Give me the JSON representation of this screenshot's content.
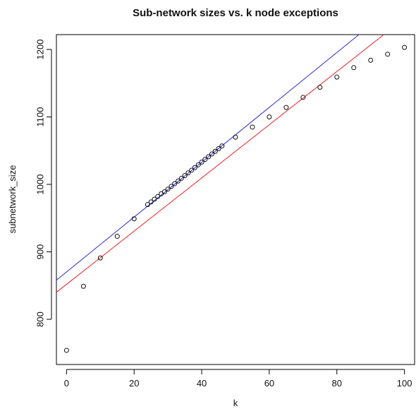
{
  "chart_data": {
    "type": "scatter",
    "title": "Sub-network sizes vs. k node exceptions",
    "xlabel": "k",
    "ylabel": "subnetwork_size",
    "xlim": [
      -3,
      103
    ],
    "ylim": [
      733,
      1222
    ],
    "x_ticks": [
      0,
      20,
      40,
      60,
      80,
      100
    ],
    "y_ticks": [
      800,
      900,
      1000,
      1100,
      1200
    ],
    "grid": false,
    "points": {
      "x": [
        0,
        5,
        10,
        15,
        20,
        24,
        25,
        26,
        27,
        28,
        29,
        30,
        31,
        32,
        33,
        34,
        35,
        36,
        37,
        38,
        39,
        40,
        41,
        42,
        43,
        44,
        45,
        46,
        50,
        55,
        60,
        65,
        70,
        75,
        80,
        85,
        90,
        95,
        100
      ],
      "y": [
        754,
        849,
        891,
        923,
        949,
        970,
        974,
        978,
        982,
        986,
        989,
        993,
        997,
        1001,
        1005,
        1009,
        1013,
        1017,
        1021,
        1025,
        1029,
        1033,
        1037,
        1041,
        1045,
        1049,
        1053,
        1057,
        1070,
        1085,
        1100,
        1114,
        1129,
        1144,
        1159,
        1173,
        1184,
        1193,
        1203
      ]
    },
    "lines": [
      {
        "color": "#2b2bd6",
        "x1": -3,
        "y1": 858,
        "x2": 103,
        "y2": 1289
      },
      {
        "color": "#e82020",
        "x1": -3,
        "y1": 840,
        "x2": 103,
        "y2": 1258
      }
    ]
  }
}
